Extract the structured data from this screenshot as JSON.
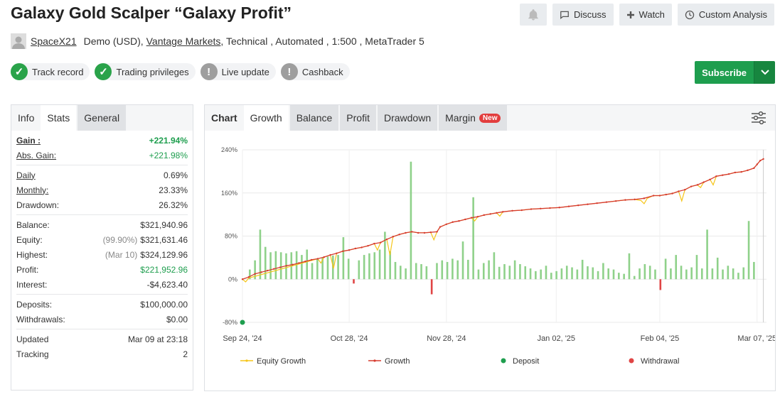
{
  "header": {
    "title": "Galaxy Gold Scalper “Galaxy Profit”",
    "discuss": "Discuss",
    "watch": "Watch",
    "custom_analysis": "Custom Analysis"
  },
  "meta": {
    "author": "SpaceX21",
    "account": "Demo (USD),",
    "broker": "Vantage Markets",
    "details": " , Technical , Automated , 1:500 , MetaTrader 5"
  },
  "badges": [
    {
      "label": "Track record",
      "status": "ok"
    },
    {
      "label": "Trading privileges",
      "status": "ok"
    },
    {
      "label": "Live update",
      "status": "warn"
    },
    {
      "label": "Cashback",
      "status": "warn"
    }
  ],
  "subscribe": {
    "label": "Subscribe"
  },
  "left_tabs": {
    "info": "Info",
    "stats": "Stats",
    "general": "General"
  },
  "stats": {
    "gain": {
      "label": "Gain :",
      "value": "+221.94%"
    },
    "abs_gain": {
      "label": "Abs. Gain:",
      "value": "+221.98%"
    },
    "daily": {
      "label": "Daily",
      "value": "0.69%"
    },
    "monthly": {
      "label": "Monthly:",
      "value": "23.33%"
    },
    "drawdown": {
      "label": "Drawdown:",
      "value": "26.32%"
    },
    "balance": {
      "label": "Balance:",
      "value": "$321,940.96"
    },
    "equity": {
      "label": "Equity:",
      "note": "(99.90%)",
      "value": "$321,631.46"
    },
    "highest": {
      "label": "Highest:",
      "note": "(Mar 10)",
      "value": "$324,129.96"
    },
    "profit": {
      "label": "Profit:",
      "value": "$221,952.96"
    },
    "interest": {
      "label": "Interest:",
      "value": "-$4,623.40"
    },
    "deposits": {
      "label": "Deposits:",
      "value": "$100,000.00"
    },
    "withdrawals": {
      "label": "Withdrawals:",
      "value": "$0.00"
    },
    "updated": {
      "label": "Updated",
      "value": "Mar 09 at 23:18"
    },
    "tracking": {
      "label": "Tracking",
      "value": "2"
    }
  },
  "chart_tabs": {
    "chart": "Chart",
    "growth": "Growth",
    "balance": "Balance",
    "profit": "Profit",
    "drawdown": "Drawdown",
    "margin": "Margin",
    "new_badge": "New"
  },
  "colors": {
    "green": "#1e9e4e",
    "growth": "#d63b2f",
    "equity": "#f5c518",
    "bar_pos": "#8fd18a",
    "bar_neg": "#e04545"
  },
  "chart_data": {
    "type": "line",
    "title": "Growth",
    "y_ticks": [
      "240%",
      "160%",
      "80%",
      "0%",
      "-80%"
    ],
    "y_values": [
      240,
      160,
      80,
      0,
      -80
    ],
    "ylim": [
      -80,
      240
    ],
    "x_tick_labels": [
      "Sep 24, '24",
      "Oct 28, '24",
      "Nov 28, '24",
      "Jan 02, '25",
      "Feb 04, '25",
      "Mar 07, '25"
    ],
    "x_tick_days": [
      0,
      34,
      65,
      100,
      133,
      164
    ],
    "x_range_days": [
      0,
      167
    ],
    "legend": [
      "Equity Growth",
      "Growth",
      "Deposit",
      "Withdrawal"
    ],
    "growth_series": [
      [
        0,
        0
      ],
      [
        2,
        4
      ],
      [
        4,
        10
      ],
      [
        6,
        13
      ],
      [
        8,
        16
      ],
      [
        10,
        19
      ],
      [
        12,
        22
      ],
      [
        14,
        25
      ],
      [
        16,
        27
      ],
      [
        18,
        30
      ],
      [
        20,
        33
      ],
      [
        22,
        36
      ],
      [
        24,
        38
      ],
      [
        26,
        41
      ],
      [
        28,
        45
      ],
      [
        30,
        48
      ],
      [
        32,
        52
      ],
      [
        34,
        54
      ],
      [
        36,
        57
      ],
      [
        38,
        59
      ],
      [
        40,
        62
      ],
      [
        42,
        66
      ],
      [
        44,
        68
      ],
      [
        46,
        74
      ],
      [
        48,
        79
      ],
      [
        50,
        83
      ],
      [
        52,
        86
      ],
      [
        54,
        88
      ],
      [
        56,
        86
      ],
      [
        58,
        86
      ],
      [
        60,
        87
      ],
      [
        62,
        88
      ],
      [
        63,
        97
      ],
      [
        65,
        102
      ],
      [
        67,
        106
      ],
      [
        69,
        108
      ],
      [
        71,
        111
      ],
      [
        73,
        114
      ],
      [
        75,
        116
      ],
      [
        77,
        119
      ],
      [
        79,
        121
      ],
      [
        81,
        123
      ],
      [
        83,
        125
      ],
      [
        86,
        127
      ],
      [
        89,
        128
      ],
      [
        92,
        130
      ],
      [
        95,
        131
      ],
      [
        98,
        132
      ],
      [
        101,
        133
      ],
      [
        104,
        135
      ],
      [
        107,
        137
      ],
      [
        110,
        139
      ],
      [
        113,
        141
      ],
      [
        116,
        143
      ],
      [
        119,
        145
      ],
      [
        122,
        147
      ],
      [
        125,
        148
      ],
      [
        128,
        150
      ],
      [
        131,
        155
      ],
      [
        133,
        155
      ],
      [
        135,
        157
      ],
      [
        137,
        159
      ],
      [
        139,
        163
      ],
      [
        141,
        166
      ],
      [
        143,
        172
      ],
      [
        145,
        175
      ],
      [
        147,
        180
      ],
      [
        149,
        185
      ],
      [
        151,
        191
      ],
      [
        153,
        193
      ],
      [
        155,
        195
      ],
      [
        157,
        198
      ],
      [
        159,
        199
      ],
      [
        161,
        202
      ],
      [
        163,
        206
      ],
      [
        164,
        213
      ],
      [
        165,
        220
      ],
      [
        166,
        223
      ]
    ],
    "equity_series": [
      [
        0,
        0
      ],
      [
        1,
        -5
      ],
      [
        2,
        2
      ],
      [
        24,
        38
      ],
      [
        25,
        30
      ],
      [
        26,
        41
      ],
      [
        28,
        45
      ],
      [
        29,
        20
      ],
      [
        30,
        48
      ],
      [
        32,
        52
      ],
      [
        34,
        54
      ],
      [
        36,
        57
      ],
      [
        38,
        59
      ],
      [
        40,
        62
      ],
      [
        42,
        66
      ],
      [
        43,
        54
      ],
      [
        44,
        68
      ],
      [
        46,
        74
      ],
      [
        47,
        45
      ],
      [
        48,
        79
      ],
      [
        50,
        83
      ],
      [
        52,
        86
      ],
      [
        54,
        88
      ],
      [
        56,
        86
      ],
      [
        58,
        86
      ],
      [
        60,
        87
      ],
      [
        61,
        73
      ],
      [
        62,
        88
      ],
      [
        63,
        97
      ],
      [
        65,
        102
      ],
      [
        67,
        106
      ],
      [
        69,
        108
      ],
      [
        71,
        111
      ],
      [
        73,
        114
      ],
      [
        74,
        108
      ],
      [
        75,
        116
      ],
      [
        77,
        119
      ],
      [
        79,
        121
      ],
      [
        81,
        123
      ],
      [
        82,
        117
      ],
      [
        83,
        125
      ],
      [
        86,
        127
      ],
      [
        89,
        128
      ],
      [
        92,
        130
      ],
      [
        95,
        131
      ],
      [
        98,
        132
      ],
      [
        101,
        133
      ],
      [
        104,
        135
      ],
      [
        107,
        137
      ],
      [
        110,
        139
      ],
      [
        113,
        141
      ],
      [
        116,
        143
      ],
      [
        119,
        145
      ],
      [
        122,
        147
      ],
      [
        125,
        148
      ],
      [
        127,
        146
      ],
      [
        128,
        140
      ],
      [
        129,
        150
      ],
      [
        131,
        155
      ],
      [
        133,
        155
      ],
      [
        135,
        157
      ],
      [
        137,
        159
      ],
      [
        139,
        163
      ],
      [
        140,
        145
      ],
      [
        141,
        166
      ],
      [
        143,
        172
      ],
      [
        145,
        175
      ],
      [
        146,
        170
      ],
      [
        147,
        180
      ],
      [
        149,
        185
      ],
      [
        150,
        175
      ],
      [
        151,
        191
      ],
      [
        153,
        193
      ],
      [
        155,
        195
      ],
      [
        157,
        198
      ],
      [
        159,
        199
      ],
      [
        161,
        202
      ],
      [
        163,
        206
      ],
      [
        164,
        213
      ],
      [
        165,
        220
      ],
      [
        166,
        223
      ]
    ],
    "daily_bars": [
      [
        1,
        18
      ],
      [
        2,
        35
      ],
      [
        3,
        92
      ],
      [
        4,
        60
      ],
      [
        5,
        50
      ],
      [
        6,
        52
      ],
      [
        7,
        50
      ],
      [
        8,
        48
      ],
      [
        9,
        50
      ],
      [
        10,
        52
      ],
      [
        11,
        45
      ],
      [
        12,
        55
      ],
      [
        13,
        30
      ],
      [
        14,
        38
      ],
      [
        15,
        40
      ],
      [
        16,
        42
      ],
      [
        17,
        44
      ],
      [
        18,
        45
      ],
      [
        19,
        78
      ],
      [
        20,
        38
      ],
      [
        21,
        -8
      ],
      [
        22,
        35
      ],
      [
        23,
        45
      ],
      [
        24,
        48
      ],
      [
        25,
        50
      ],
      [
        26,
        55
      ],
      [
        27,
        88
      ],
      [
        28,
        52
      ],
      [
        29,
        32
      ],
      [
        30,
        25
      ],
      [
        31,
        20
      ],
      [
        32,
        218
      ],
      [
        33,
        30
      ],
      [
        34,
        28
      ],
      [
        35,
        24
      ],
      [
        36,
        -28
      ],
      [
        37,
        30
      ],
      [
        38,
        35
      ],
      [
        39,
        32
      ],
      [
        40,
        38
      ],
      [
        41,
        35
      ],
      [
        42,
        70
      ],
      [
        43,
        36
      ],
      [
        44,
        152
      ],
      [
        45,
        18
      ],
      [
        46,
        30
      ],
      [
        47,
        35
      ],
      [
        48,
        50
      ],
      [
        49,
        23
      ],
      [
        50,
        28
      ],
      [
        51,
        25
      ],
      [
        52,
        35
      ],
      [
        53,
        28
      ],
      [
        54,
        24
      ],
      [
        55,
        20
      ],
      [
        56,
        15
      ],
      [
        57,
        18
      ],
      [
        58,
        25
      ],
      [
        59,
        12
      ],
      [
        60,
        15
      ],
      [
        61,
        20
      ],
      [
        62,
        25
      ],
      [
        63,
        22
      ],
      [
        64,
        18
      ],
      [
        65,
        36
      ],
      [
        66,
        24
      ],
      [
        67,
        22
      ],
      [
        68,
        15
      ],
      [
        69,
        30
      ],
      [
        70,
        20
      ],
      [
        71,
        18
      ],
      [
        72,
        12
      ],
      [
        73,
        10
      ],
      [
        74,
        48
      ],
      [
        75,
        6
      ],
      [
        76,
        20
      ],
      [
        77,
        28
      ],
      [
        78,
        25
      ],
      [
        79,
        18
      ],
      [
        80,
        -20
      ],
      [
        81,
        38
      ],
      [
        82,
        20
      ],
      [
        83,
        45
      ],
      [
        84,
        25
      ],
      [
        85,
        18
      ],
      [
        86,
        22
      ],
      [
        87,
        45
      ],
      [
        88,
        20
      ],
      [
        89,
        92
      ],
      [
        90,
        20
      ],
      [
        91,
        40
      ],
      [
        92,
        18
      ],
      [
        93,
        25
      ],
      [
        94,
        20
      ],
      [
        95,
        12
      ],
      [
        96,
        22
      ],
      [
        97,
        108
      ],
      [
        98,
        32
      ]
    ]
  }
}
